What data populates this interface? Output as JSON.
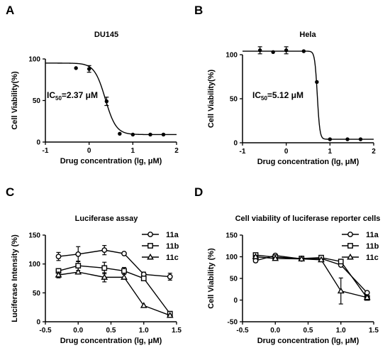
{
  "chart_data": [
    {
      "id": "A",
      "panel_label": "A",
      "type": "scatter",
      "title": "DU145",
      "xlabel": "Drug concentration (lg, μM)",
      "ylabel": "Cell Viability(%)",
      "xlim": [
        -1,
        2
      ],
      "ylim": [
        0,
        100
      ],
      "xticks": [
        "-1",
        "0",
        "1",
        "2"
      ],
      "yticks": [
        "0",
        "50",
        "100"
      ],
      "annotation": {
        "prefix": "IC",
        "sub": "50",
        "suffix": "=2.37 μM"
      },
      "fit_curve": {
        "top": 95,
        "bottom": 9,
        "logIC50": 0.37,
        "hill": 3.5
      },
      "series": [
        {
          "marker": "filled-circle",
          "x": [
            -0.3,
            0,
            0.4,
            0.7,
            1.0,
            1.4,
            1.7
          ],
          "y": [
            89,
            88,
            49,
            10,
            9,
            9,
            9
          ],
          "err": [
            0,
            4,
            5,
            0,
            0,
            0,
            0
          ]
        }
      ]
    },
    {
      "id": "B",
      "panel_label": "B",
      "type": "scatter",
      "title": "Hela",
      "xlabel": "Drug concentration (lg, μM)",
      "ylabel": "Cell Viability(%)",
      "xlim": [
        -1,
        2
      ],
      "ylim": [
        0,
        100
      ],
      "xticks": [
        "-1",
        "0",
        "1",
        "2"
      ],
      "yticks": [
        "0",
        "50",
        "100"
      ],
      "annotation": {
        "prefix": "IC",
        "sub": "50",
        "suffix": "=5.12 μM"
      },
      "fit_curve": {
        "top": 104,
        "bottom": 4,
        "logIC50": 0.71,
        "hill": 15
      },
      "series": [
        {
          "marker": "filled-circle",
          "x": [
            -0.6,
            -0.3,
            0,
            0.4,
            0.7,
            1.0,
            1.4,
            1.7
          ],
          "y": [
            105,
            103,
            105,
            104,
            69,
            4,
            4,
            4
          ],
          "err": [
            4,
            0,
            4,
            0,
            0,
            0,
            0,
            0
          ]
        }
      ]
    },
    {
      "id": "C",
      "panel_label": "C",
      "type": "line",
      "title": "Luciferase assay",
      "xlabel": "Drug concentration (lg, μM)",
      "ylabel": "Luciferase Intensity (%)",
      "xlim": [
        -0.5,
        1.5
      ],
      "ylim": [
        0,
        150
      ],
      "xticks": [
        "-0.5",
        "0.0",
        "0.5",
        "1.0",
        "1.5"
      ],
      "yticks": [
        "0",
        "50",
        "100",
        "150"
      ],
      "x": [
        -0.3,
        0,
        0.4,
        0.7,
        1.0,
        1.4
      ],
      "series": [
        {
          "name": "11a",
          "marker": "circle",
          "y": [
            113,
            117,
            124,
            118,
            82,
            78
          ],
          "err": [
            7,
            13,
            8,
            0,
            4,
            6
          ]
        },
        {
          "name": "11b",
          "marker": "square",
          "y": [
            88,
            97,
            93,
            88,
            75,
            14
          ],
          "err": [
            0,
            8,
            10,
            6,
            0,
            0
          ]
        },
        {
          "name": "11c",
          "marker": "triangle",
          "y": [
            81,
            86,
            77,
            77,
            28,
            11
          ],
          "err": [
            5,
            0,
            8,
            0,
            0,
            0
          ]
        }
      ]
    },
    {
      "id": "D",
      "panel_label": "D",
      "type": "line",
      "title": "Cell viability of luciferase reporter cells",
      "xlabel": "Drug concentration (lg, μM)",
      "ylabel": "Cell Viability (%)",
      "xlim": [
        -0.5,
        1.5
      ],
      "ylim": [
        -50,
        150
      ],
      "xticks": [
        "-0.5",
        "0.0",
        "0.5",
        "1.0",
        "1.5"
      ],
      "yticks": [
        "-50",
        "0",
        "50",
        "100",
        "150"
      ],
      "x": [
        -0.3,
        0,
        0.4,
        0.7,
        1.0,
        1.4
      ],
      "series": [
        {
          "name": "11a",
          "marker": "circle",
          "y": [
            91,
            103,
            95,
            96,
            81,
            17
          ],
          "err": [
            4,
            3,
            2,
            2,
            3,
            2
          ]
        },
        {
          "name": "11b",
          "marker": "square",
          "y": [
            104,
            99,
            96,
            98,
            89,
            5
          ],
          "err": [
            3,
            2,
            2,
            2,
            4,
            2
          ]
        },
        {
          "name": "11c",
          "marker": "triangle",
          "y": [
            100,
            96,
            95,
            93,
            21,
            6
          ],
          "err": [
            3,
            2,
            2,
            2,
            30,
            2
          ]
        }
      ]
    }
  ]
}
